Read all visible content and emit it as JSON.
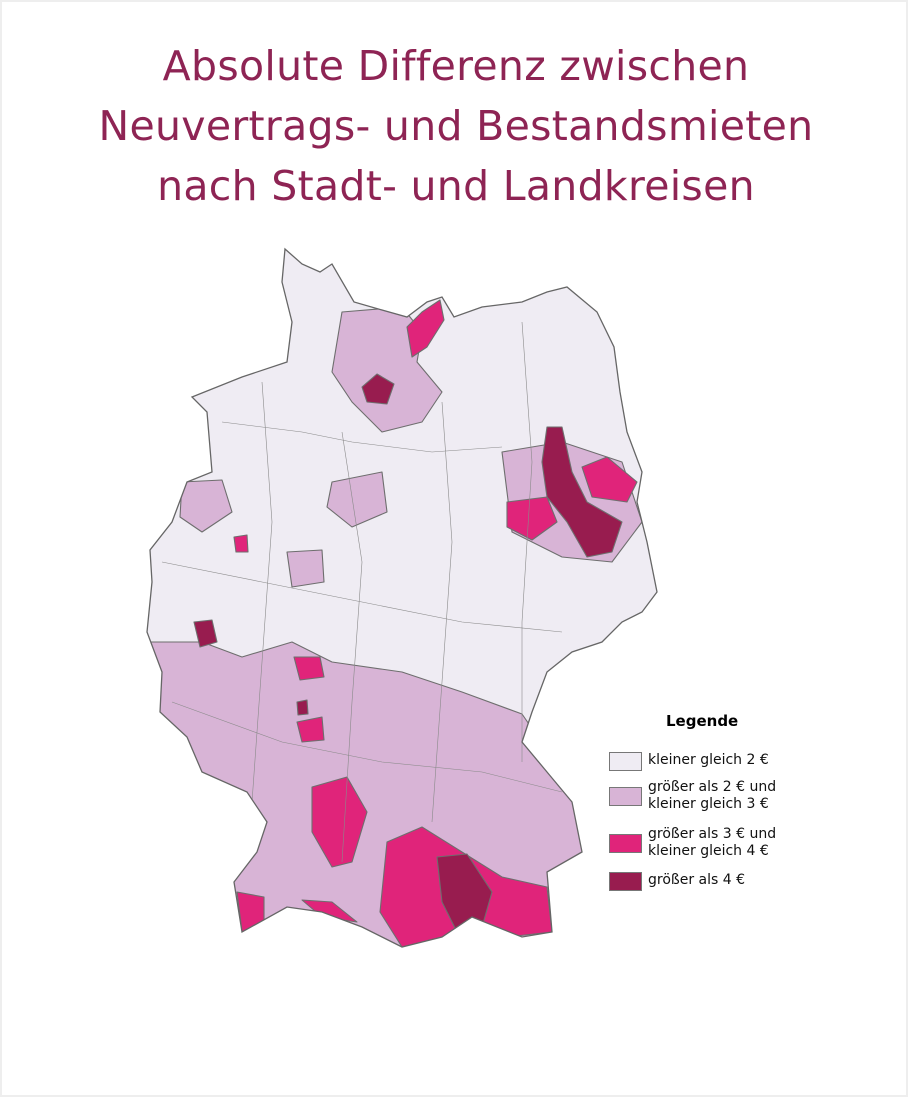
{
  "header": {
    "title_lines": [
      "Absolute Differenz zwischen",
      "Neuvertrags- und Bestandsmieten",
      "nach Stadt- und Landkreisen"
    ]
  },
  "legend": {
    "title": "Legende",
    "items": [
      {
        "lines": [
          "kleiner gleich 2 €"
        ],
        "color": "#efecf3"
      },
      {
        "lines": [
          "größer als 2 € und",
          "kleiner gleich 3 €"
        ],
        "color": "#d8b4d6"
      },
      {
        "lines": [
          "größer als 3 € und",
          "kleiner gleich 4 €"
        ],
        "color": "#e0247a"
      },
      {
        "lines": [
          "größer als 4 €"
        ],
        "color": "#981c4f"
      }
    ]
  }
}
